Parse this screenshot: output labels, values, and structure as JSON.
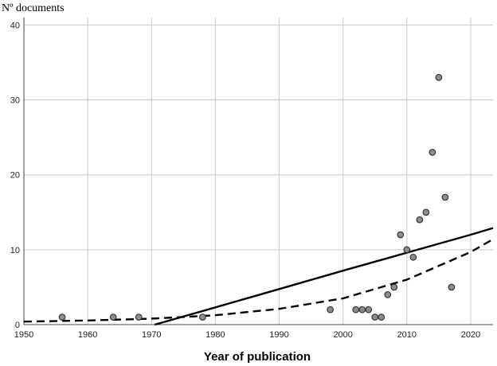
{
  "chart_data": {
    "type": "scatter",
    "title": "",
    "xlabel": "Year of publication",
    "ylabel": "Nº documents",
    "xlim": [
      1950,
      2023.5
    ],
    "ylim": [
      0,
      41
    ],
    "xticks": [
      1950,
      1960,
      1970,
      1980,
      1990,
      2000,
      2010,
      2020
    ],
    "yticks": [
      0,
      10,
      20,
      30,
      40
    ],
    "grid": true,
    "legend": "none",
    "series": [
      {
        "kind": "scatter",
        "color": "#8c8c8c",
        "points": [
          {
            "x": 1956,
            "y": 1
          },
          {
            "x": 1964,
            "y": 1
          },
          {
            "x": 1968,
            "y": 1
          },
          {
            "x": 1978,
            "y": 1
          },
          {
            "x": 1998,
            "y": 2
          },
          {
            "x": 2002,
            "y": 2
          },
          {
            "x": 2003,
            "y": 2
          },
          {
            "x": 2004,
            "y": 2
          },
          {
            "x": 2005,
            "y": 1
          },
          {
            "x": 2006,
            "y": 1
          },
          {
            "x": 2007,
            "y": 4
          },
          {
            "x": 2008,
            "y": 5
          },
          {
            "x": 2009,
            "y": 12
          },
          {
            "x": 2010,
            "y": 10
          },
          {
            "x": 2011,
            "y": 9
          },
          {
            "x": 2012,
            "y": 14
          },
          {
            "x": 2013,
            "y": 15
          },
          {
            "x": 2014,
            "y": 23
          },
          {
            "x": 2015,
            "y": 33
          },
          {
            "x": 2016,
            "y": 17
          },
          {
            "x": 2017,
            "y": 5
          }
        ]
      },
      {
        "kind": "line",
        "style": "solid",
        "color": "#000000",
        "points": [
          {
            "x": 1970.5,
            "y": 0
          },
          {
            "x": 1980,
            "y": 2.3
          },
          {
            "x": 1990,
            "y": 4.75
          },
          {
            "x": 2000,
            "y": 7.2
          },
          {
            "x": 2010,
            "y": 9.6
          },
          {
            "x": 2020,
            "y": 12.0
          },
          {
            "x": 2023.5,
            "y": 12.9
          }
        ]
      },
      {
        "kind": "line",
        "style": "dashed",
        "color": "#000000",
        "points": [
          {
            "x": 1950,
            "y": 0.4
          },
          {
            "x": 1960,
            "y": 0.55
          },
          {
            "x": 1970,
            "y": 0.8
          },
          {
            "x": 1980,
            "y": 1.25
          },
          {
            "x": 1990,
            "y": 2.1
          },
          {
            "x": 2000,
            "y": 3.5
          },
          {
            "x": 2010,
            "y": 6.0
          },
          {
            "x": 2020,
            "y": 9.7
          },
          {
            "x": 2023.5,
            "y": 11.4
          }
        ]
      }
    ]
  }
}
